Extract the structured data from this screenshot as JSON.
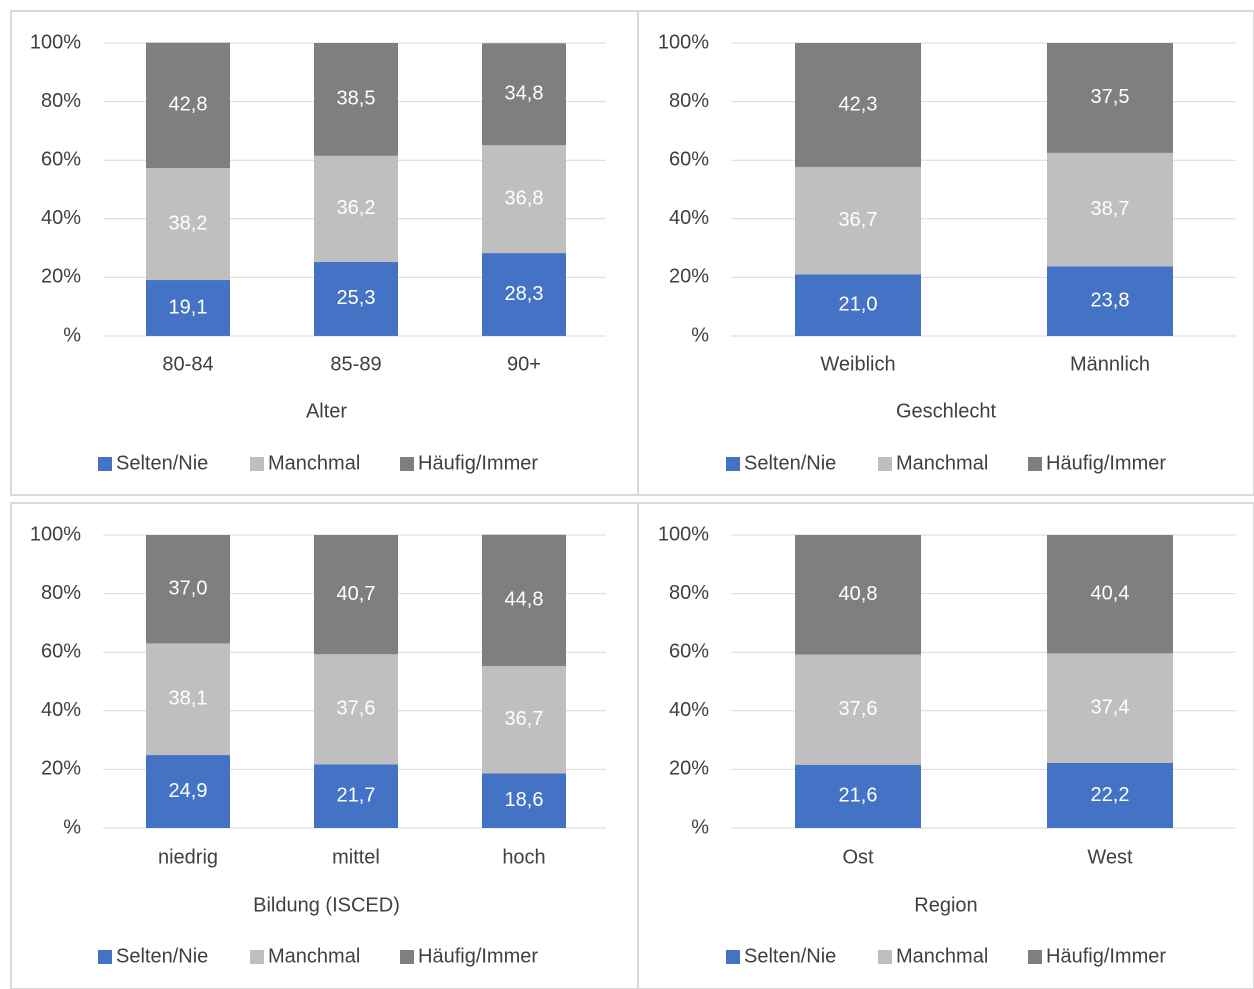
{
  "chart_data": [
    {
      "type": "bar",
      "stacked": true,
      "xlabel": "Alter",
      "ylabel": "",
      "categories": [
        "80-84",
        "85-89",
        "90+"
      ],
      "y_ticks": [
        "%",
        "20%",
        "40%",
        "60%",
        "80%",
        "100%"
      ],
      "ylim": [
        0,
        100
      ],
      "grid": true,
      "legend_position": "bottom",
      "series": [
        {
          "name": "Selten/Nie",
          "color": "#4472c4",
          "values": [
            19.1,
            25.3,
            28.3
          ],
          "labels": [
            "19,1",
            "25,3",
            "28,3"
          ]
        },
        {
          "name": "Manchmal",
          "color": "#bfbfbf",
          "values": [
            38.2,
            36.2,
            36.8
          ],
          "labels": [
            "38,2",
            "36,2",
            "36,8"
          ]
        },
        {
          "name": "Häufig/Immer",
          "color": "#7f7f7f",
          "values": [
            42.8,
            38.5,
            34.8
          ],
          "labels": [
            "42,8",
            "38,5",
            "34,8"
          ]
        }
      ]
    },
    {
      "type": "bar",
      "stacked": true,
      "xlabel": "Geschlecht",
      "ylabel": "",
      "categories": [
        "Weiblich",
        "Männlich"
      ],
      "y_ticks": [
        "%",
        "20%",
        "40%",
        "60%",
        "80%",
        "100%"
      ],
      "ylim": [
        0,
        100
      ],
      "grid": true,
      "legend_position": "bottom",
      "series": [
        {
          "name": "Selten/Nie",
          "color": "#4472c4",
          "values": [
            21.0,
            23.8
          ],
          "labels": [
            "21,0",
            "23,8"
          ]
        },
        {
          "name": "Manchmal",
          "color": "#bfbfbf",
          "values": [
            36.7,
            38.7
          ],
          "labels": [
            "36,7",
            "38,7"
          ]
        },
        {
          "name": "Häufig/Immer",
          "color": "#7f7f7f",
          "values": [
            42.3,
            37.5
          ],
          "labels": [
            "42,3",
            "37,5"
          ]
        }
      ]
    },
    {
      "type": "bar",
      "stacked": true,
      "xlabel": "Bildung (ISCED)",
      "ylabel": "",
      "categories": [
        "niedrig",
        "mittel",
        "hoch"
      ],
      "y_ticks": [
        "%",
        "20%",
        "40%",
        "60%",
        "80%",
        "100%"
      ],
      "ylim": [
        0,
        100
      ],
      "grid": true,
      "legend_position": "bottom",
      "series": [
        {
          "name": "Selten/Nie",
          "color": "#4472c4",
          "values": [
            24.9,
            21.7,
            18.6
          ],
          "labels": [
            "24,9",
            "21,7",
            "18,6"
          ]
        },
        {
          "name": "Manchmal",
          "color": "#bfbfbf",
          "values": [
            38.1,
            37.6,
            36.7
          ],
          "labels": [
            "38,1",
            "37,6",
            "36,7"
          ]
        },
        {
          "name": "Häufig/Immer",
          "color": "#7f7f7f",
          "values": [
            37.0,
            40.7,
            44.8
          ],
          "labels": [
            "37,0",
            "40,7",
            "44,8"
          ]
        }
      ]
    },
    {
      "type": "bar",
      "stacked": true,
      "xlabel": "Region",
      "ylabel": "",
      "categories": [
        "Ost",
        "West"
      ],
      "y_ticks": [
        "%",
        "20%",
        "40%",
        "60%",
        "80%",
        "100%"
      ],
      "ylim": [
        0,
        100
      ],
      "grid": true,
      "legend_position": "bottom",
      "series": [
        {
          "name": "Selten/Nie",
          "color": "#4472c4",
          "values": [
            21.6,
            22.2
          ],
          "labels": [
            "21,6",
            "22,2"
          ]
        },
        {
          "name": "Manchmal",
          "color": "#bfbfbf",
          "values": [
            37.6,
            37.4
          ],
          "labels": [
            "37,6",
            "37,4"
          ]
        },
        {
          "name": "Häufig/Immer",
          "color": "#7f7f7f",
          "values": [
            40.8,
            40.4
          ],
          "labels": [
            "40,8",
            "40,4"
          ]
        }
      ]
    }
  ]
}
